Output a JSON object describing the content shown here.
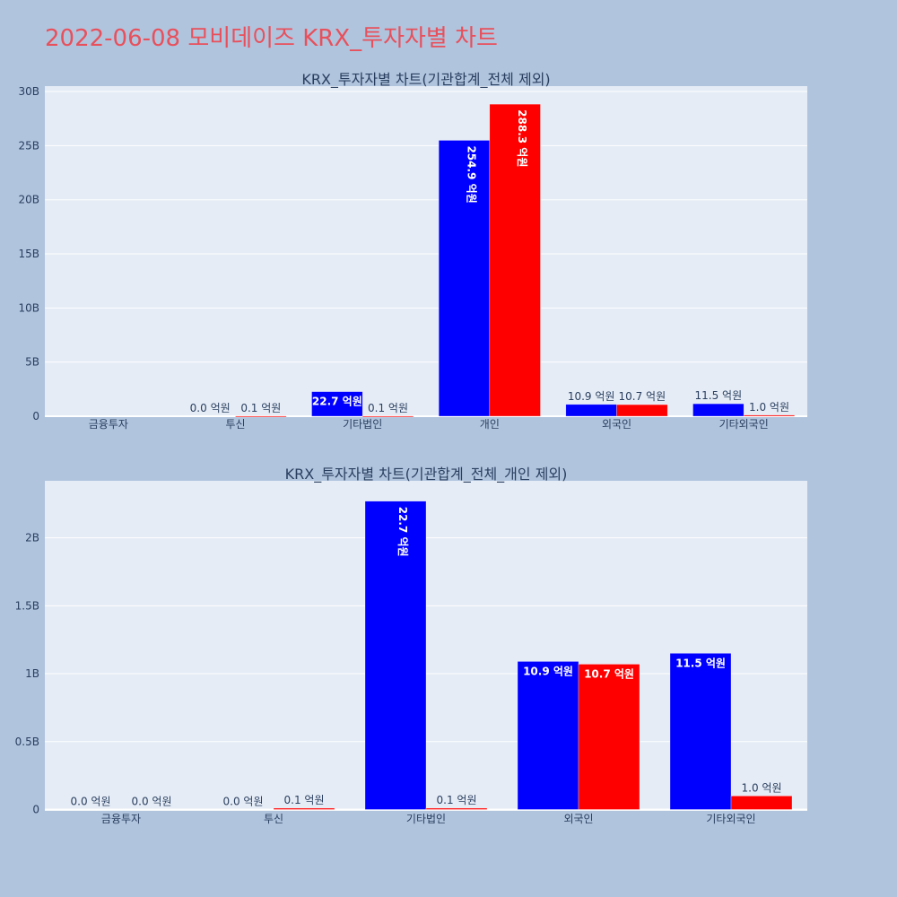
{
  "page": {
    "title": "2022-06-08 모비데이즈 KRX_투자자별 차트"
  },
  "colors": {
    "background": "#b0c4de",
    "plot_bg": "#e5ecf6",
    "title": "#e8505b",
    "text": "#2a3f5f",
    "series_buy": "#0000ff",
    "series_sell": "#ff0000"
  },
  "chart_data": [
    {
      "type": "bar",
      "title": "KRX_투자자별 차트(기관합계_전체 제외)",
      "categories": [
        "금융투자",
        "투신",
        "기타법인",
        "개인",
        "외국인",
        "기타외국인"
      ],
      "series": [
        {
          "color": "#0000ff",
          "values": [
            0,
            0,
            2270000000,
            25490000000,
            1090000000,
            1150000000
          ],
          "labels": [
            "",
            "0.0 억원",
            "22.7 억원",
            "254.9 억원",
            "10.9 억원",
            "11.5 억원"
          ]
        },
        {
          "color": "#ff0000",
          "values": [
            0,
            10000000,
            10000000,
            28830000000,
            1070000000,
            100000000
          ],
          "labels": [
            "",
            "0.1 억원",
            "0.1 억원",
            "288.3 억원",
            "10.7 억원",
            "1.0 억원"
          ]
        }
      ],
      "ylim": [
        0,
        30500000000
      ],
      "yticks": [
        0,
        5000000000,
        10000000000,
        15000000000,
        20000000000,
        25000000000,
        30000000000
      ],
      "yticklabels": [
        "0",
        "5B",
        "10B",
        "15B",
        "20B",
        "25B",
        "30B"
      ],
      "grid": true
    },
    {
      "type": "bar",
      "title": "KRX_투자자별 차트(기관합계_전체_개인 제외)",
      "categories": [
        "금융투자",
        "투신",
        "기타법인",
        "외국인",
        "기타외국인"
      ],
      "series": [
        {
          "color": "#0000ff",
          "values": [
            0,
            0,
            2270000000,
            1090000000,
            1150000000
          ],
          "labels": [
            "0.0 억원",
            "0.0 억원",
            "22.7 억원",
            "10.9 억원",
            "11.5 억원"
          ]
        },
        {
          "color": "#ff0000",
          "values": [
            0,
            10000000,
            10000000,
            1070000000,
            100000000
          ],
          "labels": [
            "0.0 억원",
            "0.1 억원",
            "0.1 억원",
            "10.7 억원",
            "1.0 억원"
          ]
        }
      ],
      "ylim": [
        -10000000,
        2420000000
      ],
      "yticks": [
        0,
        500000000,
        1000000000,
        1500000000,
        2000000000
      ],
      "yticklabels": [
        "0",
        "0.5B",
        "1B",
        "1.5B",
        "2B"
      ],
      "grid": true
    }
  ]
}
